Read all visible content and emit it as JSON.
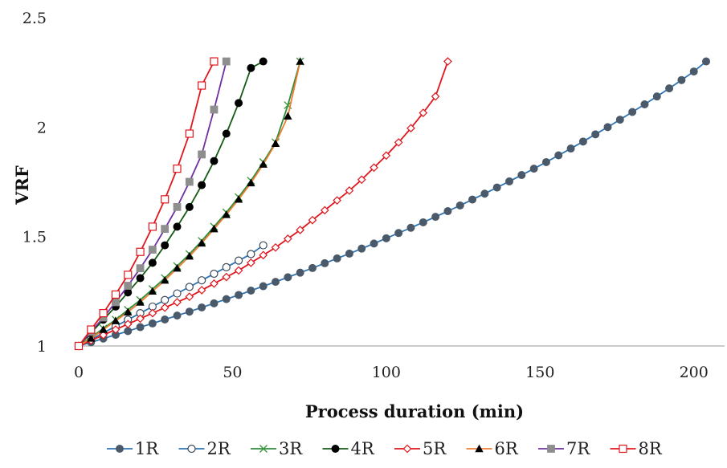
{
  "chart_data": {
    "type": "line",
    "title": "",
    "xlabel": "Process duration (min)",
    "ylabel": "VRF",
    "xlim": [
      0,
      210
    ],
    "ylim": [
      1,
      2.5
    ],
    "x_ticks": [
      0,
      50,
      100,
      150,
      200
    ],
    "y_ticks": [
      1,
      1.5,
      2,
      2.5
    ],
    "grid": false,
    "legend_position": "bottom",
    "series": [
      {
        "name": "1R",
        "color": "#2E75B6",
        "marker": "circle-filled",
        "marker_color": "#4A5A6A",
        "x": [
          0,
          4,
          8,
          12,
          16,
          20,
          24,
          28,
          32,
          36,
          40,
          44,
          48,
          52,
          56,
          60,
          64,
          68,
          72,
          76,
          80,
          84,
          88,
          92,
          96,
          100,
          104,
          108,
          112,
          116,
          120,
          124,
          128,
          132,
          136,
          140,
          144,
          148,
          152,
          156,
          160,
          164,
          168,
          172,
          176,
          180,
          184,
          188,
          192,
          196,
          200,
          204
        ],
        "y": [
          1.0,
          1.017,
          1.034,
          1.051,
          1.068,
          1.086,
          1.103,
          1.121,
          1.139,
          1.157,
          1.176,
          1.195,
          1.214,
          1.233,
          1.253,
          1.273,
          1.293,
          1.314,
          1.335,
          1.356,
          1.378,
          1.4,
          1.422,
          1.445,
          1.468,
          1.492,
          1.516,
          1.54,
          1.565,
          1.59,
          1.616,
          1.642,
          1.669,
          1.696,
          1.724,
          1.752,
          1.781,
          1.81,
          1.84,
          1.871,
          1.902,
          1.934,
          1.967,
          2.0,
          2.034,
          2.069,
          2.104,
          2.14,
          2.177,
          2.215,
          2.254,
          2.3
        ]
      },
      {
        "name": "2R",
        "color": "#2E75B6",
        "marker": "circle-open",
        "marker_color": "#3A4A5A",
        "x": [
          0,
          4,
          8,
          12,
          16,
          20,
          24,
          28,
          32,
          36,
          40,
          44,
          48,
          52,
          56,
          60
        ],
        "y": [
          1.0,
          1.03,
          1.06,
          1.09,
          1.12,
          1.15,
          1.18,
          1.21,
          1.24,
          1.27,
          1.3,
          1.33,
          1.36,
          1.39,
          1.42,
          1.46
        ]
      },
      {
        "name": "3R",
        "color": "#2E8B3E",
        "marker": "x",
        "marker_color": "#3C9A3C",
        "x": [
          0,
          4,
          8,
          12,
          16,
          20,
          24,
          28,
          32,
          36,
          40,
          44,
          48,
          52,
          56,
          60,
          64,
          68,
          72
        ],
        "y": [
          1.0,
          1.04,
          1.08,
          1.12,
          1.165,
          1.21,
          1.26,
          1.31,
          1.365,
          1.42,
          1.48,
          1.545,
          1.61,
          1.68,
          1.755,
          1.84,
          1.93,
          2.1,
          2.3
        ]
      },
      {
        "name": "4R",
        "color": "#145A14",
        "marker": "circle-filled",
        "marker_color": "#000000",
        "x": [
          0,
          4,
          8,
          12,
          16,
          20,
          24,
          28,
          32,
          36,
          40,
          44,
          48,
          52,
          56,
          60
        ],
        "y": [
          1.0,
          1.06,
          1.12,
          1.18,
          1.245,
          1.31,
          1.38,
          1.46,
          1.545,
          1.635,
          1.735,
          1.845,
          1.97,
          2.11,
          2.27,
          2.3
        ]
      },
      {
        "name": "5R",
        "color": "#E0161D",
        "marker": "diamond-open",
        "marker_color": "#E0161D",
        "x": [
          0,
          4,
          8,
          12,
          16,
          20,
          24,
          28,
          32,
          36,
          40,
          44,
          48,
          52,
          56,
          60,
          64,
          68,
          72,
          76,
          80,
          84,
          88,
          92,
          96,
          100,
          104,
          108,
          112,
          116,
          120
        ],
        "y": [
          1.0,
          1.025,
          1.05,
          1.075,
          1.1,
          1.125,
          1.15,
          1.175,
          1.2,
          1.225,
          1.255,
          1.285,
          1.315,
          1.345,
          1.38,
          1.415,
          1.45,
          1.49,
          1.53,
          1.575,
          1.62,
          1.665,
          1.71,
          1.76,
          1.815,
          1.87,
          1.93,
          1.995,
          2.065,
          2.14,
          2.3
        ]
      },
      {
        "name": "6R",
        "color": "#ED7D31",
        "marker": "triangle-filled",
        "marker_color": "#000000",
        "x": [
          0,
          4,
          8,
          12,
          16,
          20,
          24,
          28,
          32,
          36,
          40,
          44,
          48,
          52,
          56,
          60,
          64,
          68,
          72
        ],
        "y": [
          1.0,
          1.035,
          1.075,
          1.115,
          1.155,
          1.2,
          1.25,
          1.3,
          1.355,
          1.41,
          1.47,
          1.535,
          1.6,
          1.67,
          1.745,
          1.83,
          1.925,
          2.05,
          2.3
        ]
      },
      {
        "name": "7R",
        "color": "#7030A0",
        "marker": "square-filled",
        "marker_color": "#8E8E8E",
        "x": [
          0,
          4,
          8,
          12,
          16,
          20,
          24,
          28,
          32,
          36,
          40,
          44,
          48
        ],
        "y": [
          1.0,
          1.065,
          1.13,
          1.2,
          1.275,
          1.355,
          1.44,
          1.535,
          1.635,
          1.75,
          1.875,
          2.08,
          2.3
        ]
      },
      {
        "name": "8R",
        "color": "#E0161D",
        "marker": "square-open",
        "marker_color": "#E0161D",
        "x": [
          0,
          4,
          8,
          12,
          16,
          20,
          24,
          28,
          32,
          36,
          40,
          44
        ],
        "y": [
          1.0,
          1.075,
          1.15,
          1.235,
          1.325,
          1.43,
          1.545,
          1.67,
          1.81,
          1.97,
          2.19,
          2.3
        ]
      }
    ]
  }
}
